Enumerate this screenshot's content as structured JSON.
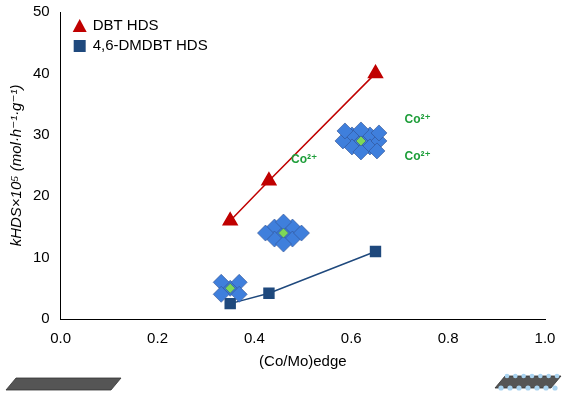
{
  "chart_data": {
    "type": "scatter",
    "x_label": "(Co/Mo)edge",
    "y_label": "kHDS×10⁵ (mol·h⁻¹·g⁻¹)",
    "series": [
      {
        "name": "DBT HDS",
        "color": "#c00000",
        "marker": "triangle",
        "line_style": "solid",
        "x": [
          0.35,
          0.43,
          0.65
        ],
        "values": [
          16,
          22.5,
          40
        ]
      },
      {
        "name": "4,6-DMDBT HDS",
        "color": "#1f497d",
        "marker": "square",
        "line_style": "solid",
        "x": [
          0.35,
          0.43,
          0.65
        ],
        "values": [
          2.5,
          4.2,
          11
        ]
      }
    ],
    "xlim": [
      0,
      1
    ],
    "xticks": [
      {
        "value": 0,
        "label": "0.0"
      },
      0.2,
      0.4,
      0.6,
      0.8,
      {
        "value": 1,
        "label": "1.0"
      }
    ],
    "ylim": [
      0,
      50
    ],
    "yticks": [
      0,
      10,
      20,
      30,
      40,
      50
    ],
    "grid": false,
    "legend": "upper left",
    "annotations": [
      "Co²⁺",
      "Co²⁺",
      "Co²⁺"
    ]
  }
}
